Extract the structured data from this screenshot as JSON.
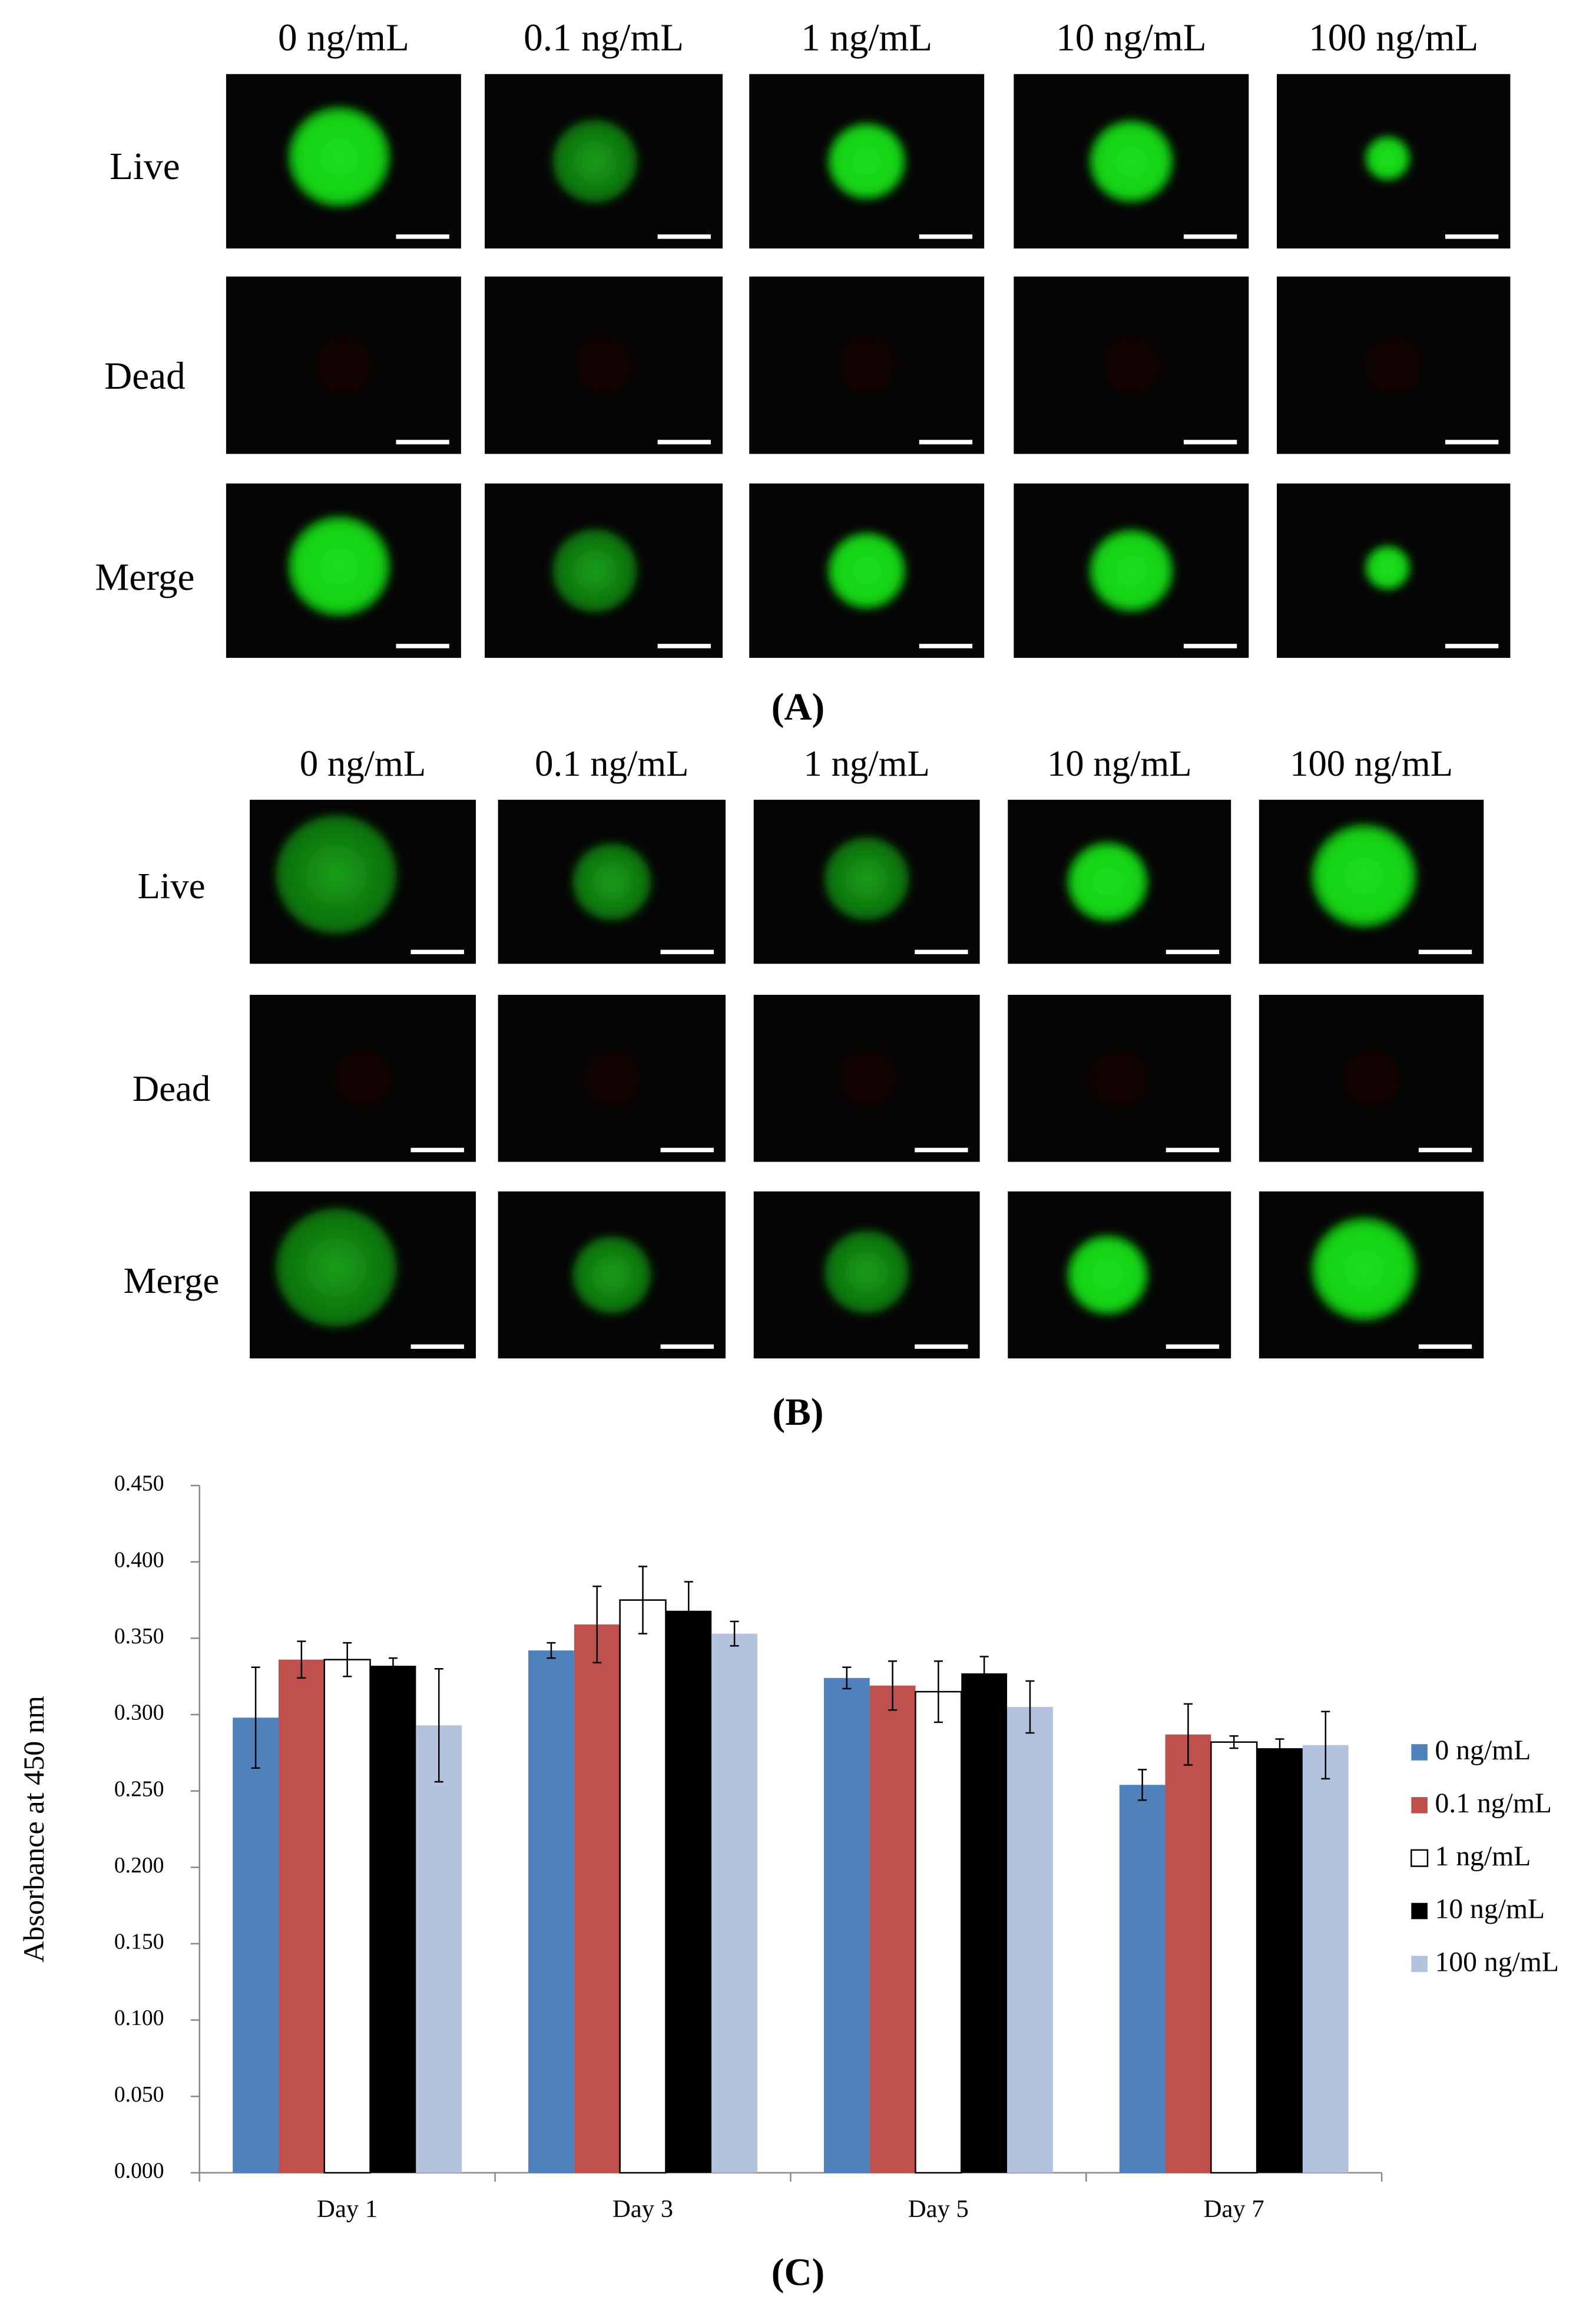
{
  "panel_a": {
    "columns": [
      "0 ng/mL",
      "0.1 ng/mL",
      "1 ng/mL",
      "10 ng/mL",
      "100 ng/mL"
    ],
    "rows": [
      "Live",
      "Dead",
      "Merge"
    ],
    "label": "(A)"
  },
  "panel_b": {
    "columns": [
      "0 ng/mL",
      "0.1 ng/mL",
      "1 ng/mL",
      "10 ng/mL",
      "100 ng/mL"
    ],
    "rows": [
      "Live",
      "Dead",
      "Merge"
    ],
    "label": "(B)"
  },
  "panel_c_label": "(C)",
  "chart_data": {
    "type": "bar",
    "y_label": "Absorbance at 450 nm",
    "categories": [
      "Day 1",
      "Day 3",
      "Day 5",
      "Day 7"
    ],
    "series": [
      {
        "name": "0 ng/mL",
        "color": "#4f81bd",
        "values": [
          0.298,
          0.342,
          0.324,
          0.254
        ],
        "errors": [
          0.033,
          0.005,
          0.007,
          0.01
        ]
      },
      {
        "name": "0.1 ng/mL",
        "color": "#c0504d",
        "values": [
          0.336,
          0.359,
          0.319,
          0.287
        ],
        "errors": [
          0.012,
          0.025,
          0.016,
          0.02
        ]
      },
      {
        "name": "1 ng/mL",
        "color": "#ffffff",
        "values": [
          0.336,
          0.375,
          0.315,
          0.282
        ],
        "errors": [
          0.011,
          0.022,
          0.02,
          0.004
        ]
      },
      {
        "name": "10 ng/mL",
        "color": "#000000",
        "values": [
          0.332,
          0.368,
          0.327,
          0.278
        ],
        "errors": [
          0.005,
          0.019,
          0.011,
          0.006
        ]
      },
      {
        "name": "100 ng/mL",
        "color": "#b3c3de",
        "values": [
          0.293,
          0.353,
          0.305,
          0.28
        ],
        "errors": [
          0.037,
          0.008,
          0.017,
          0.022
        ]
      }
    ],
    "ylim": [
      0,
      0.45
    ],
    "yticks": [
      {
        "value": 0,
        "label": "0.000"
      },
      {
        "value": 0.05,
        "label": "0.050"
      },
      {
        "value": 0.1,
        "label": "0.100"
      },
      {
        "value": 0.15,
        "label": "0.150"
      },
      {
        "value": 0.2,
        "label": "0.200"
      },
      {
        "value": 0.25,
        "label": "0.250"
      },
      {
        "value": 0.3,
        "label": "0.300"
      },
      {
        "value": 0.35,
        "label": "0.350"
      },
      {
        "value": 0.4,
        "label": "0.400"
      },
      {
        "value": 0.45,
        "label": "0.450"
      }
    ],
    "legend": "right"
  }
}
